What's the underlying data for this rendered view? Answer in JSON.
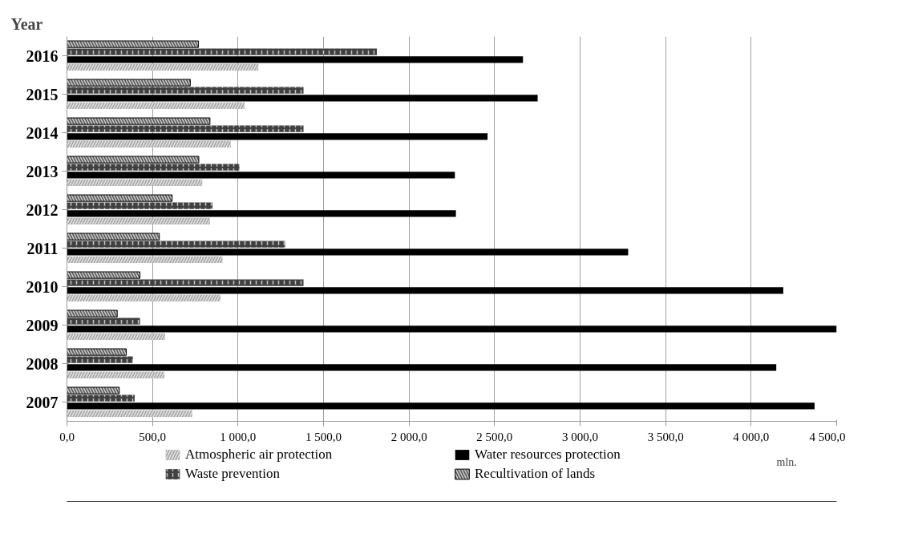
{
  "chart_data": {
    "type": "bar",
    "orientation": "horizontal",
    "ylabel": "Year",
    "categories": [
      "2016",
      "2015",
      "2014",
      "2013",
      "2012",
      "2011",
      "2010",
      "2009",
      "2008",
      "2007"
    ],
    "series": [
      {
        "name": "Atmospheric air protection",
        "color": "#a6a6a6",
        "values": [
          1119,
          1039,
          957,
          791,
          836,
          909,
          898,
          574,
          570,
          732
        ]
      },
      {
        "name": "Water resources protection",
        "color": "#000000",
        "values": [
          2666,
          2752,
          2459,
          2268,
          2274,
          3281,
          4188,
          4500,
          4147,
          4371
        ]
      },
      {
        "name": "Waste prevention",
        "color": "#404040",
        "values": [
          1812,
          1383,
          1383,
          1008,
          851,
          1275,
          1383,
          427,
          386,
          396
        ]
      },
      {
        "name": "Recultivation of lands",
        "color": "#595959",
        "values": [
          769,
          721,
          836,
          771,
          615,
          540,
          427,
          294,
          347,
          306
        ]
      }
    ],
    "xlim": [
      0,
      4500
    ],
    "xticks": [
      {
        "value": 0,
        "label": "0,0"
      },
      {
        "value": 500,
        "label": "500,0"
      },
      {
        "value": 1000,
        "label": "1 000,0"
      },
      {
        "value": 1500,
        "label": "1 500,0"
      },
      {
        "value": 2000,
        "label": "2 000,0"
      },
      {
        "value": 2500,
        "label": "2 500,0"
      },
      {
        "value": 3000,
        "label": "3 000,0"
      },
      {
        "value": 3500,
        "label": "3 500,0"
      },
      {
        "value": 4000,
        "label": "4 000,0"
      },
      {
        "value": 4500,
        "label": "4 500,0"
      }
    ],
    "grid": "x",
    "legend": "bottom",
    "annotations": [
      "mln."
    ]
  }
}
